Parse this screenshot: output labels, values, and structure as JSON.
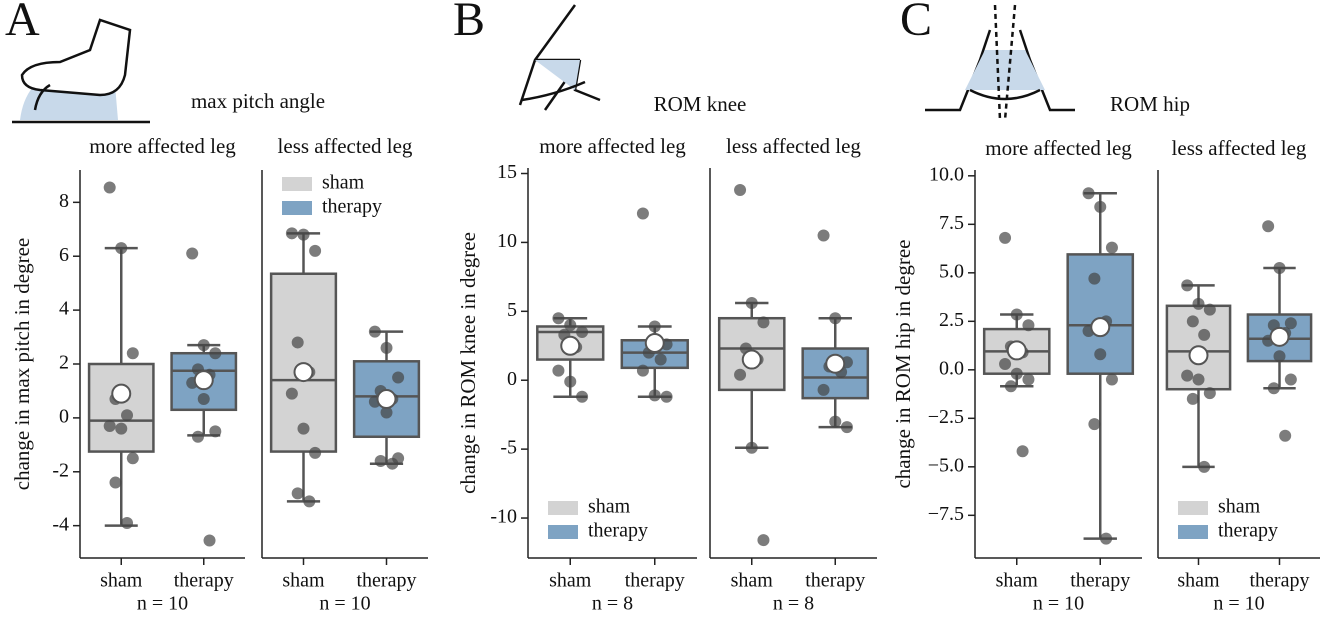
{
  "chart_data": [
    {
      "type": "box",
      "label": "A",
      "title": "max pitch angle",
      "ylabel": "change in max pitch in degree",
      "ylim": [
        -5.2,
        9.2
      ],
      "yticks": [
        -4,
        -2,
        0,
        2,
        4,
        6,
        8
      ],
      "series": [
        {
          "name": "sham",
          "color": "#d3d3d3"
        },
        {
          "name": "therapy",
          "color": "#7ea3c3"
        }
      ],
      "legend": "upper left",
      "legend_subplot": 1,
      "subplots": [
        {
          "title": "more affected leg",
          "categories": [
            "sham",
            "therapy"
          ],
          "xlabel": "n = 10",
          "boxes": [
            {
              "whislo": -4,
              "q1": -1.25,
              "med": -0.1,
              "q3": 2.0,
              "whishi": 6.3,
              "mean": 0.9,
              "points": [
                8.55,
                6.3,
                2.4,
                0.7,
                0.1,
                -0.3,
                -0.4,
                -1.5,
                -2.4,
                -3.9
              ]
            },
            {
              "whislo": -0.65,
              "q1": 0.3,
              "med": 1.75,
              "q3": 2.4,
              "whishi": 2.7,
              "mean": 1.4,
              "points": [
                6.1,
                2.7,
                2.4,
                1.8,
                1.6,
                1.3,
                0.7,
                -0.5,
                -0.7,
                -4.55
              ]
            }
          ]
        },
        {
          "title": "less affected leg",
          "categories": [
            "sham",
            "therapy"
          ],
          "xlabel": "n = 10",
          "boxes": [
            {
              "whislo": -3.1,
              "q1": -1.25,
              "med": 1.4,
              "q3": 5.35,
              "whishi": 6.85,
              "mean": 1.7,
              "points": [
                6.85,
                6.8,
                6.2,
                2.8,
                1.7,
                0.9,
                -0.4,
                -1.3,
                -2.8,
                -3.1
              ]
            },
            {
              "whislo": -1.7,
              "q1": -0.7,
              "med": 0.8,
              "q3": 2.1,
              "whishi": 3.2,
              "mean": 0.7,
              "points": [
                3.2,
                2.6,
                1.5,
                1.0,
                0.7,
                0.6,
                0.2,
                -1.5,
                -1.6,
                -1.7
              ]
            }
          ]
        }
      ]
    },
    {
      "type": "box",
      "label": "B",
      "title": "ROM knee",
      "ylabel": "change in ROM knee in degree",
      "ylim": [
        -12.9,
        15.4
      ],
      "yticks": [
        -10,
        -5,
        0,
        5,
        10,
        15
      ],
      "series": [
        {
          "name": "sham",
          "color": "#d3d3d3"
        },
        {
          "name": "therapy",
          "color": "#7ea3c3"
        }
      ],
      "legend": "lower left",
      "legend_subplot": 0,
      "subplots": [
        {
          "title": "more affected leg",
          "categories": [
            "sham",
            "therapy"
          ],
          "xlabel": "n = 8",
          "boxes": [
            {
              "whislo": -1.2,
              "q1": 1.5,
              "med": 3.5,
              "q3": 3.9,
              "whishi": 4.5,
              "mean": 2.5,
              "points": [
                4.5,
                4.0,
                3.5,
                3.3,
                2.4,
                0.7,
                -0.1,
                -1.2
              ]
            },
            {
              "whislo": -1.2,
              "q1": 0.9,
              "med": 2.0,
              "q3": 2.9,
              "whishi": 3.9,
              "mean": 2.7,
              "points": [
                12.1,
                3.9,
                2.6,
                2.0,
                1.5,
                0.7,
                -1.1,
                -1.2
              ]
            }
          ]
        },
        {
          "title": "less affected leg",
          "categories": [
            "sham",
            "therapy"
          ],
          "xlabel": "n = 8",
          "boxes": [
            {
              "whislo": -4.9,
              "q1": -0.7,
              "med": 2.3,
              "q3": 4.5,
              "whishi": 5.6,
              "mean": 1.5,
              "points": [
                13.8,
                5.6,
                4.2,
                2.3,
                1.5,
                0.4,
                -4.9,
                -11.6
              ]
            },
            {
              "whislo": -3.4,
              "q1": -1.3,
              "med": 0.2,
              "q3": 2.3,
              "whishi": 4.5,
              "mean": 1.2,
              "points": [
                10.5,
                4.5,
                1.3,
                1.0,
                0.6,
                -0.7,
                -3.0,
                -3.4
              ]
            }
          ]
        }
      ]
    },
    {
      "type": "box",
      "label": "C",
      "title": "ROM hip",
      "ylabel": "change in ROM hip in degree",
      "ylim": [
        -9.7,
        10.3
      ],
      "yticks": [
        {
          "value": -7.5,
          "label": "−7.5"
        },
        {
          "value": -5,
          "label": "−5.0"
        },
        {
          "value": -2.5,
          "label": "−2.5"
        },
        {
          "value": 0,
          "label": "0.0"
        },
        2.5,
        {
          "value": 5,
          "label": "5.0"
        },
        7.5,
        {
          "value": 10,
          "label": "10.0"
        }
      ],
      "series": [
        {
          "name": "sham",
          "color": "#d3d3d3"
        },
        {
          "name": "therapy",
          "color": "#7ea3c3"
        }
      ],
      "legend": "lower left",
      "legend_subplot": 1,
      "subplots": [
        {
          "title": "more affected leg",
          "categories": [
            "sham",
            "therapy"
          ],
          "xlabel": "n = 10",
          "boxes": [
            {
              "whislo": -0.85,
              "q1": -0.2,
              "med": 0.95,
              "q3": 2.1,
              "whishi": 2.85,
              "mean": 1.0,
              "points": [
                6.8,
                2.85,
                2.3,
                1.2,
                0.9,
                0.3,
                -0.2,
                -0.5,
                -0.85,
                -4.2
              ]
            },
            {
              "whislo": -8.7,
              "q1": -0.2,
              "med": 2.3,
              "q3": 5.95,
              "whishi": 9.1,
              "mean": 2.2,
              "points": [
                9.1,
                8.4,
                6.3,
                4.7,
                2.5,
                2.0,
                0.8,
                -0.5,
                -2.8,
                -8.7
              ]
            }
          ]
        },
        {
          "title": "less affected leg",
          "categories": [
            "sham",
            "therapy"
          ],
          "xlabel": "n = 10",
          "boxes": [
            {
              "whislo": -5.0,
              "q1": -1.0,
              "med": 0.95,
              "q3": 3.3,
              "whishi": 4.35,
              "mean": 0.75,
              "points": [
                4.35,
                3.4,
                3.1,
                2.5,
                1.8,
                -0.3,
                -0.5,
                -1.2,
                -1.5,
                -5.0
              ]
            },
            {
              "whislo": -0.95,
              "q1": 0.45,
              "med": 1.6,
              "q3": 2.85,
              "whishi": 5.25,
              "mean": 1.7,
              "points": [
                7.4,
                5.25,
                2.4,
                2.3,
                1.9,
                1.5,
                0.7,
                -0.5,
                -0.95,
                -3.4
              ]
            }
          ]
        }
      ]
    }
  ]
}
